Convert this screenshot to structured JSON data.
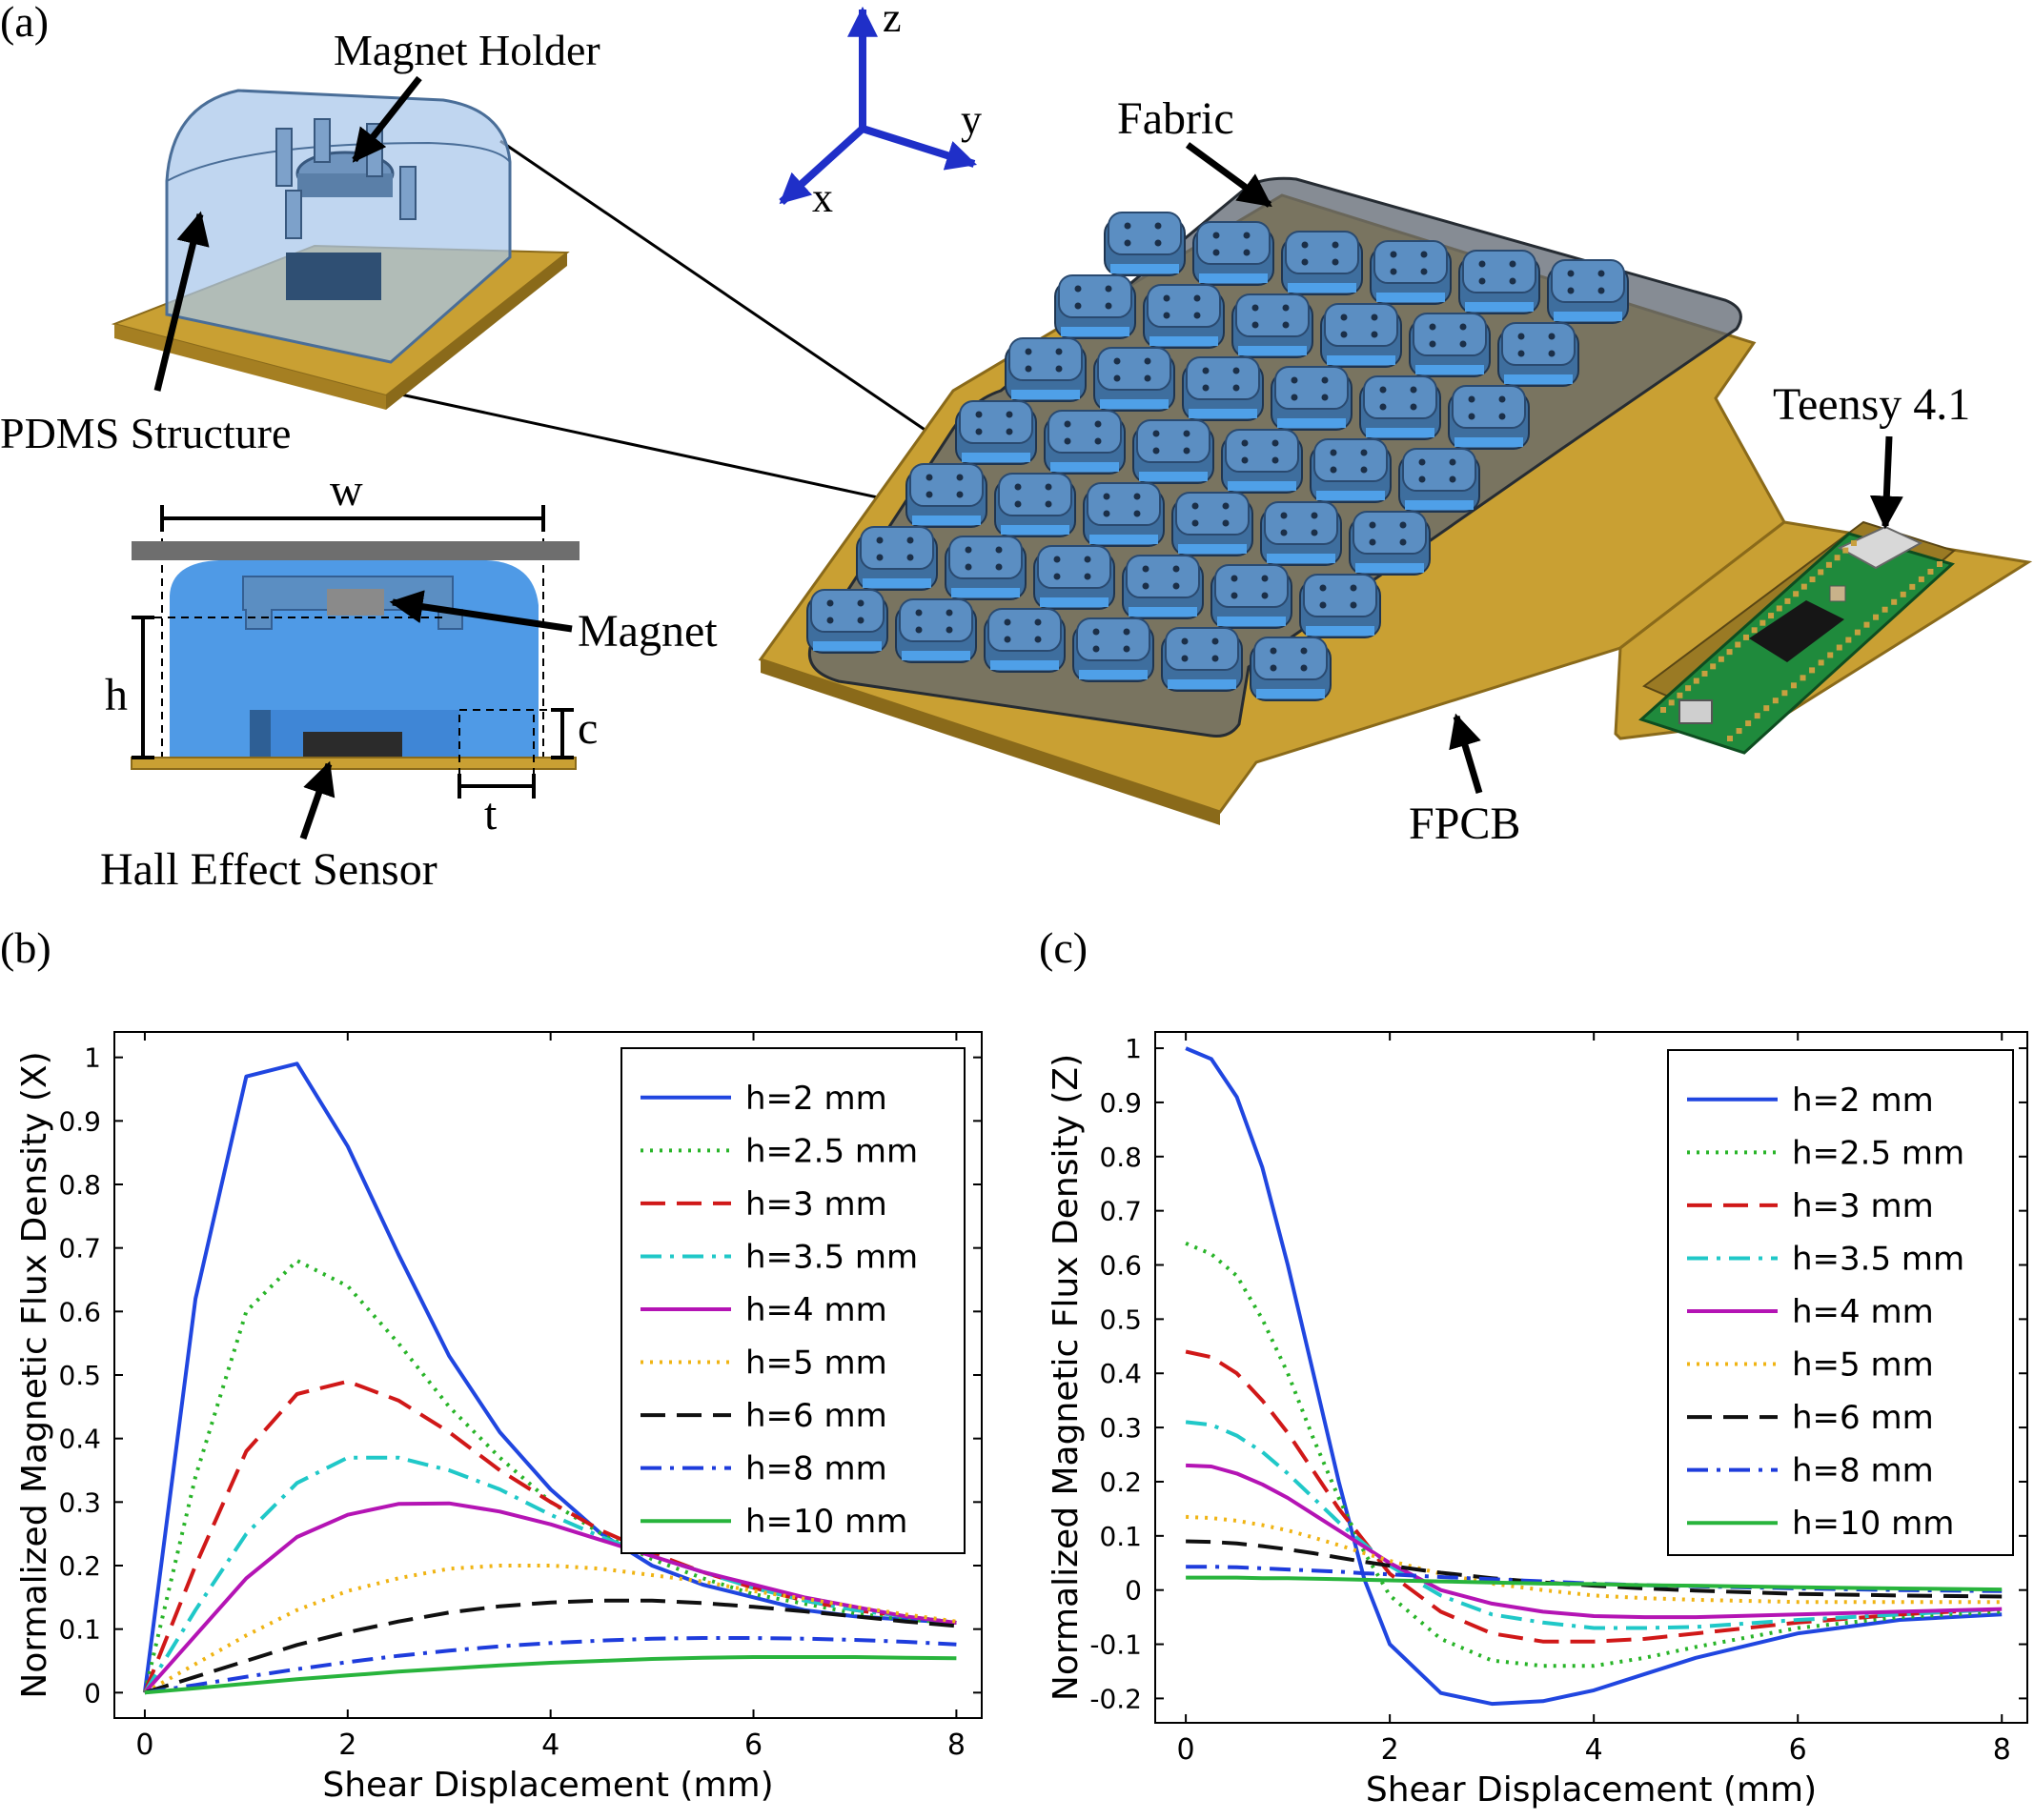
{
  "panel_a": {
    "label": "(a)",
    "axes": {
      "z": "z",
      "y": "y",
      "x": "x"
    },
    "callouts": {
      "magnet_holder": "Magnet Holder",
      "pdms_structure": "PDMS Structure",
      "fabric": "Fabric",
      "teensy": "Teensy 4.1",
      "magnet": "Magnet",
      "hall_sensor": "Hall Effect Sensor",
      "fpcb": "FPCB"
    },
    "dimensions": {
      "w": "w",
      "h": "h",
      "c": "c",
      "t": "t"
    },
    "sensor_grid": {
      "rows": 7,
      "cols": 6
    },
    "colors": {
      "pcb": "#c9a033",
      "sensor": "#3e6e9e",
      "sensor_light": "#5b8ec2",
      "fabric": "#5d6670",
      "pdms": "#a8c6ea",
      "section_blue": "#4f9ae6",
      "teensy_green": "#1f8a3c",
      "axis_blue": "#1f2fc8"
    }
  },
  "chart_data": [
    {
      "panel": "(b)",
      "type": "line",
      "xlabel": "Shear Displacement (mm)",
      "ylabel": "Normalized Magnetic Flux Density (X)",
      "xlim": [
        -0.3,
        8.25
      ],
      "ylim": [
        -0.04,
        1.04
      ],
      "xticks": [
        "0",
        "2",
        "4",
        "6",
        "8"
      ],
      "xtick_values": [
        0,
        2,
        4,
        6,
        8
      ],
      "yticks": [
        "0",
        "0.1",
        "0.2",
        "0.3",
        "0.4",
        "0.5",
        "0.6",
        "0.7",
        "0.8",
        "0.9",
        "1"
      ],
      "ytick_values": [
        0,
        0.1,
        0.2,
        0.3,
        0.4,
        0.5,
        0.6,
        0.7,
        0.8,
        0.9,
        1
      ],
      "legend_position": "top-right",
      "x": [
        0,
        0.5,
        1,
        1.5,
        2,
        2.5,
        3,
        3.5,
        4,
        4.5,
        5,
        5.5,
        6,
        6.5,
        7,
        7.5,
        8
      ],
      "series": [
        {
          "name": "h=2 mm",
          "color": "#2046e0",
          "dash": "solid",
          "values": [
            0,
            0.62,
            0.97,
            0.99,
            0.86,
            0.69,
            0.53,
            0.41,
            0.32,
            0.25,
            0.2,
            0.17,
            0.15,
            0.13,
            0.12,
            0.115,
            0.11
          ]
        },
        {
          "name": "h=2.5 mm",
          "color": "#28b428",
          "dash": "dot",
          "values": [
            0,
            0.34,
            0.6,
            0.68,
            0.64,
            0.55,
            0.45,
            0.37,
            0.3,
            0.25,
            0.21,
            0.18,
            0.155,
            0.14,
            0.125,
            0.115,
            0.11
          ]
        },
        {
          "name": "h=3 mm",
          "color": "#d01818",
          "dash": "dash",
          "values": [
            0,
            0.2,
            0.38,
            0.47,
            0.49,
            0.46,
            0.41,
            0.35,
            0.3,
            0.255,
            0.22,
            0.19,
            0.165,
            0.145,
            0.13,
            0.12,
            0.11
          ]
        },
        {
          "name": "h=3.5 mm",
          "color": "#20c8c8",
          "dash": "dashdot",
          "values": [
            0,
            0.13,
            0.25,
            0.33,
            0.37,
            0.37,
            0.35,
            0.32,
            0.28,
            0.245,
            0.215,
            0.19,
            0.165,
            0.145,
            0.13,
            0.12,
            0.11
          ]
        },
        {
          "name": "h=4 mm",
          "color": "#b414b4",
          "dash": "solid",
          "values": [
            0,
            0.09,
            0.18,
            0.245,
            0.28,
            0.297,
            0.298,
            0.285,
            0.265,
            0.24,
            0.215,
            0.19,
            0.17,
            0.15,
            0.135,
            0.12,
            0.11
          ]
        },
        {
          "name": "h=5 mm",
          "color": "#f0b414",
          "dash": "dot",
          "values": [
            0,
            0.045,
            0.09,
            0.13,
            0.16,
            0.18,
            0.195,
            0.2,
            0.2,
            0.195,
            0.185,
            0.175,
            0.16,
            0.148,
            0.135,
            0.123,
            0.112
          ]
        },
        {
          "name": "h=6 mm",
          "color": "#101010",
          "dash": "dash",
          "values": [
            0,
            0.025,
            0.05,
            0.075,
            0.095,
            0.112,
            0.126,
            0.136,
            0.142,
            0.145,
            0.145,
            0.141,
            0.135,
            0.128,
            0.12,
            0.112,
            0.105
          ]
        },
        {
          "name": "h=8 mm",
          "color": "#1e3cdc",
          "dash": "dashdot",
          "values": [
            0,
            0.012,
            0.025,
            0.037,
            0.048,
            0.058,
            0.066,
            0.073,
            0.078,
            0.082,
            0.085,
            0.086,
            0.086,
            0.085,
            0.083,
            0.08,
            0.076
          ]
        },
        {
          "name": "h=10 mm",
          "color": "#28b43c",
          "dash": "solid",
          "values": [
            0,
            0.007,
            0.014,
            0.021,
            0.027,
            0.033,
            0.038,
            0.043,
            0.047,
            0.05,
            0.053,
            0.055,
            0.056,
            0.056,
            0.056,
            0.055,
            0.054
          ]
        }
      ]
    },
    {
      "panel": "(c)",
      "type": "line",
      "xlabel": "Shear Displacement (mm)",
      "ylabel": "Normalized Magnetic Flux Density (Z)",
      "xlim": [
        -0.3,
        8.25
      ],
      "ylim": [
        -0.245,
        1.03
      ],
      "xticks": [
        "0",
        "2",
        "4",
        "6",
        "8"
      ],
      "xtick_values": [
        0,
        2,
        4,
        6,
        8
      ],
      "yticks": [
        "-0.2",
        "-0.1",
        "0",
        "0.1",
        "0.2",
        "0.3",
        "0.4",
        "0.5",
        "0.6",
        "0.7",
        "0.8",
        "0.9",
        "1"
      ],
      "ytick_values": [
        -0.2,
        -0.1,
        0,
        0.1,
        0.2,
        0.3,
        0.4,
        0.5,
        0.6,
        0.7,
        0.8,
        0.9,
        1
      ],
      "legend_position": "top-right",
      "x": [
        0,
        0.25,
        0.5,
        0.75,
        1,
        1.25,
        1.5,
        1.75,
        2,
        2.5,
        3,
        3.5,
        4,
        4.5,
        5,
        6,
        7,
        8
      ],
      "series": [
        {
          "name": "h=2 mm",
          "color": "#2046e0",
          "dash": "solid",
          "values": [
            1.0,
            0.98,
            0.91,
            0.78,
            0.6,
            0.4,
            0.2,
            0.02,
            -0.1,
            -0.19,
            -0.21,
            -0.205,
            -0.185,
            -0.155,
            -0.125,
            -0.08,
            -0.055,
            -0.045
          ]
        },
        {
          "name": "h=2.5 mm",
          "color": "#28b428",
          "dash": "dot",
          "values": [
            0.64,
            0.62,
            0.58,
            0.5,
            0.4,
            0.28,
            0.17,
            0.07,
            -0.01,
            -0.09,
            -0.13,
            -0.14,
            -0.14,
            -0.125,
            -0.105,
            -0.07,
            -0.05,
            -0.04
          ]
        },
        {
          "name": "h=3 mm",
          "color": "#d01818",
          "dash": "dash",
          "values": [
            0.44,
            0.43,
            0.4,
            0.35,
            0.29,
            0.22,
            0.15,
            0.09,
            0.03,
            -0.04,
            -0.08,
            -0.095,
            -0.095,
            -0.09,
            -0.08,
            -0.06,
            -0.045,
            -0.035
          ]
        },
        {
          "name": "h=3.5 mm",
          "color": "#20c8c8",
          "dash": "dashdot",
          "values": [
            0.31,
            0.305,
            0.285,
            0.255,
            0.215,
            0.17,
            0.125,
            0.085,
            0.045,
            -0.01,
            -0.045,
            -0.06,
            -0.07,
            -0.07,
            -0.068,
            -0.055,
            -0.045,
            -0.035
          ]
        },
        {
          "name": "h=4 mm",
          "color": "#b414b4",
          "dash": "solid",
          "values": [
            0.23,
            0.228,
            0.215,
            0.195,
            0.17,
            0.14,
            0.11,
            0.08,
            0.05,
            0.0,
            -0.025,
            -0.04,
            -0.048,
            -0.05,
            -0.05,
            -0.045,
            -0.04,
            -0.035
          ]
        },
        {
          "name": "h=5 mm",
          "color": "#f0b414",
          "dash": "dot",
          "values": [
            0.135,
            0.133,
            0.128,
            0.12,
            0.11,
            0.097,
            0.083,
            0.068,
            0.054,
            0.03,
            0.012,
            0.0,
            -0.01,
            -0.015,
            -0.018,
            -0.022,
            -0.022,
            -0.022
          ]
        },
        {
          "name": "h=6 mm",
          "color": "#101010",
          "dash": "dash",
          "values": [
            0.09,
            0.089,
            0.086,
            0.081,
            0.075,
            0.068,
            0.06,
            0.052,
            0.045,
            0.032,
            0.022,
            0.014,
            0.008,
            0.003,
            -0.001,
            -0.007,
            -0.01,
            -0.012
          ]
        },
        {
          "name": "h=8 mm",
          "color": "#1e3cdc",
          "dash": "dashdot",
          "values": [
            0.043,
            0.043,
            0.042,
            0.04,
            0.038,
            0.036,
            0.034,
            0.031,
            0.029,
            0.024,
            0.02,
            0.016,
            0.012,
            0.009,
            0.007,
            0.003,
            0.0,
            -0.002
          ]
        },
        {
          "name": "h=10 mm",
          "color": "#28b43c",
          "dash": "solid",
          "values": [
            0.023,
            0.023,
            0.023,
            0.022,
            0.022,
            0.021,
            0.02,
            0.019,
            0.018,
            0.016,
            0.014,
            0.012,
            0.011,
            0.009,
            0.008,
            0.005,
            0.003,
            0.001
          ]
        }
      ]
    }
  ]
}
